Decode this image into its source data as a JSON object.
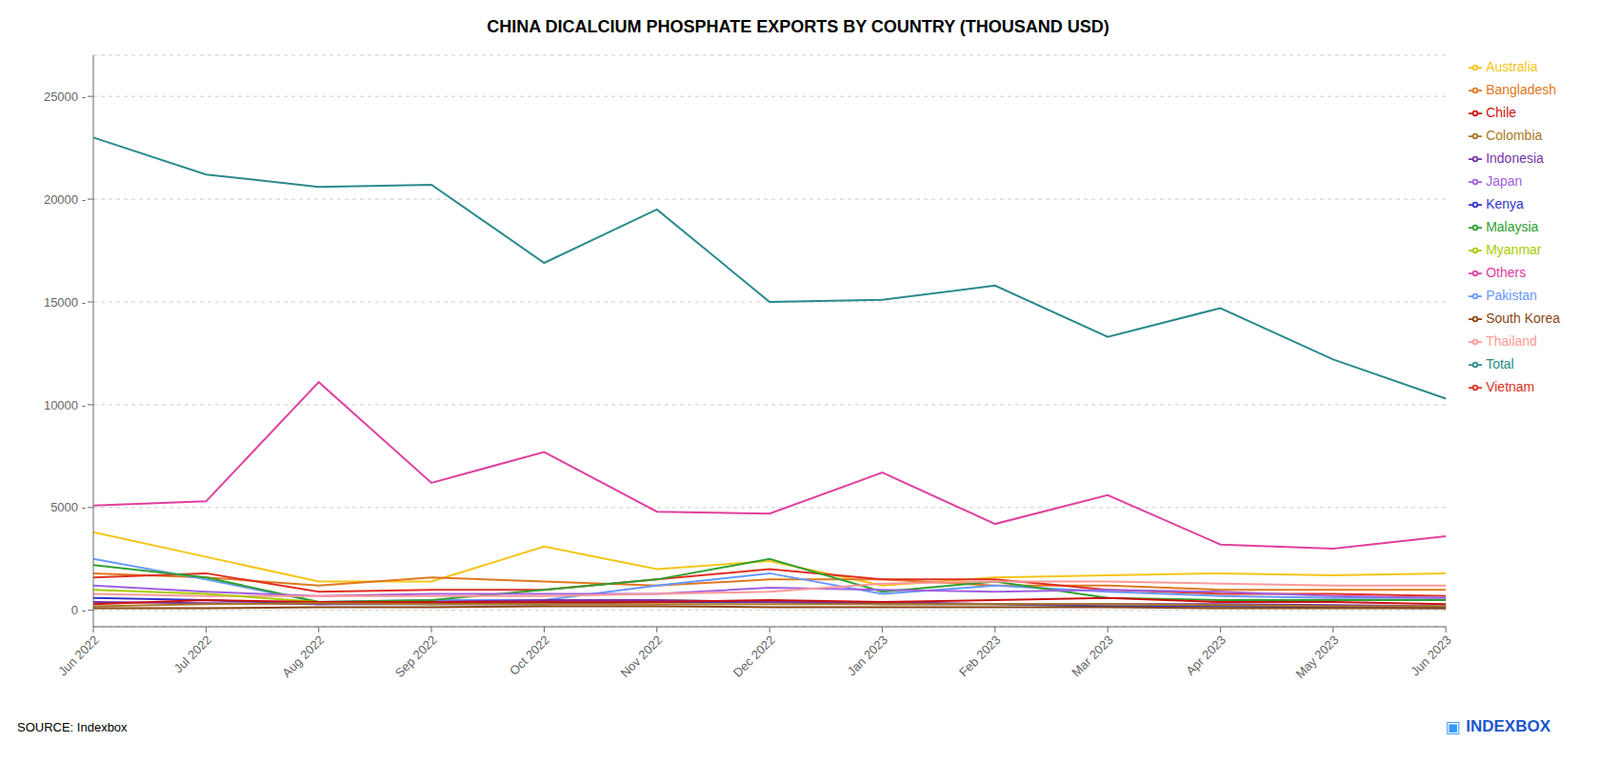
{
  "chart_data": {
    "type": "line",
    "title": "CHINA DICALCIUM PHOSPHATE EXPORTS BY COUNTRY (THOUSAND USD)",
    "annotations": [
      "SOURCE: Indexbox",
      "▣",
      "INDEXBOX"
    ],
    "categories": [
      "Jun 2022",
      "Jul 2022",
      "Aug 2022",
      "Sep 2022",
      "Oct 2022",
      "Nov 2022",
      "Dec 2022",
      "Jan 2023",
      "Feb 2023",
      "Mar 2023",
      "Apr 2023",
      "May 2023",
      "Jun 2023"
    ],
    "series": [
      {
        "name": "Total",
        "color": "#2a8a8c",
        "values": [
          23000,
          21200,
          20600,
          20700,
          16900,
          19500,
          15000,
          15100,
          15800,
          13300,
          14700,
          12200,
          10300
        ]
      },
      {
        "name": "Others",
        "color": "#e040a0",
        "values": [
          5100,
          5300,
          11100,
          6200,
          7700,
          4800,
          4700,
          6700,
          4200,
          5600,
          3200,
          3000,
          3600
        ]
      },
      {
        "name": "Australia",
        "color": "#f5c518",
        "values": [
          3800,
          2600,
          1400,
          1400,
          3100,
          2000,
          2400,
          1200,
          1600,
          1700,
          1800,
          1700,
          1800
        ]
      },
      {
        "name": "Bangladesh",
        "color": "#e07820",
        "values": [
          1800,
          1600,
          1200,
          1600,
          1400,
          1200,
          1500,
          1500,
          1200,
          1200,
          1000,
          1000,
          1000
        ]
      },
      {
        "name": "Vietnam",
        "color": "#e03020",
        "values": [
          1600,
          1800,
          900,
          1000,
          1000,
          1500,
          2000,
          1500,
          1500,
          1000,
          800,
          800,
          700
        ]
      },
      {
        "name": "Pakistan",
        "color": "#6699ff",
        "values": [
          2500,
          1500,
          400,
          500,
          500,
          1200,
          1800,
          800,
          1200,
          900,
          700,
          600,
          600
        ]
      },
      {
        "name": "Malaysia",
        "color": "#30a030",
        "values": [
          2200,
          1600,
          400,
          500,
          1000,
          1500,
          2500,
          900,
          1400,
          600,
          500,
          500,
          500
        ]
      },
      {
        "name": "Japan",
        "color": "#a060e0",
        "values": [
          1200,
          900,
          700,
          800,
          800,
          800,
          1100,
          1000,
          900,
          1000,
          900,
          700,
          600
        ]
      },
      {
        "name": "Thailand",
        "color": "#ff9999",
        "values": [
          800,
          700,
          700,
          700,
          700,
          800,
          900,
          1300,
          1400,
          1400,
          1300,
          1200,
          1200
        ]
      },
      {
        "name": "Myanmar",
        "color": "#aacc00",
        "values": [
          1000,
          800,
          400,
          300,
          400,
          500,
          400,
          300,
          300,
          200,
          200,
          200,
          150
        ]
      },
      {
        "name": "Kenya",
        "color": "#3333cc",
        "values": [
          600,
          500,
          300,
          300,
          300,
          400,
          400,
          300,
          300,
          200,
          200,
          150,
          100
        ]
      },
      {
        "name": "Indonesia",
        "color": "#7733aa",
        "values": [
          400,
          350,
          300,
          400,
          500,
          500,
          400,
          400,
          300,
          300,
          300,
          250,
          200
        ]
      },
      {
        "name": "Chile",
        "color": "#cc1111",
        "values": [
          300,
          500,
          400,
          400,
          400,
          400,
          500,
          400,
          500,
          600,
          400,
          400,
          300
        ]
      },
      {
        "name": "Colombia",
        "color": "#aa7722",
        "values": [
          200,
          300,
          350,
          300,
          300,
          300,
          300,
          300,
          300,
          300,
          250,
          200,
          200
        ]
      },
      {
        "name": "South Korea",
        "color": "#8B4513",
        "values": [
          100,
          100,
          150,
          150,
          200,
          200,
          150,
          150,
          150,
          150,
          100,
          100,
          100
        ]
      }
    ],
    "ylim": [
      -800,
      27000
    ],
    "yticks": [
      {
        "value": 0,
        "label": "0 -"
      },
      {
        "value": 5000,
        "label": "5000 -"
      },
      {
        "value": 10000,
        "label": "10000 -"
      },
      {
        "value": 15000,
        "label": "15000 -"
      },
      {
        "value": 20000,
        "label": "20000 -"
      },
      {
        "value": 25000,
        "label": "25000 -"
      }
    ],
    "grid": true,
    "legend": "right"
  }
}
